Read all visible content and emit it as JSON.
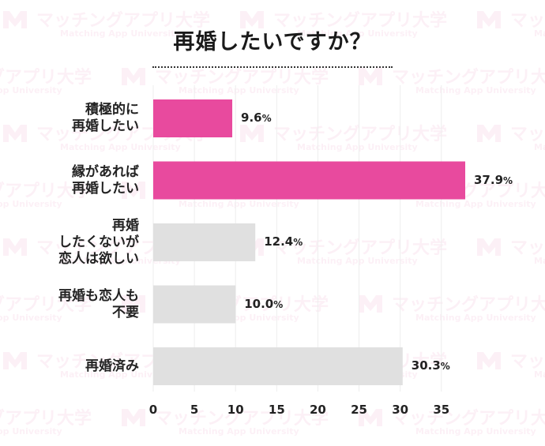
{
  "title": "再婚したいですか？",
  "watermark": {
    "brand": "マッチングアプリ大学",
    "brand_en": "Matching App University",
    "color": "#e15a96"
  },
  "colors": {
    "highlight": "#e84a9e",
    "normal": "#e0e0e0"
  },
  "chart_data": {
    "type": "bar",
    "orientation": "horizontal",
    "title": "再婚したいですか？",
    "categories": [
      "積極的に\n再婚したい",
      "縁があれば\n再婚したい",
      "再婚\nしたくないが\n恋人は欲しい",
      "再婚も恋人も\n不要",
      "再婚済み"
    ],
    "values": [
      9.6,
      37.9,
      12.4,
      10.0,
      30.3
    ],
    "value_labels": [
      "9.6",
      "37.9",
      "12.4",
      "10.0",
      "30.3"
    ],
    "value_unit": "%",
    "highlighted": [
      true,
      true,
      false,
      false,
      false
    ],
    "xlim": [
      0,
      37.9
    ],
    "xticks": [
      0,
      5,
      10,
      15,
      20,
      25,
      30,
      35
    ],
    "xlabel": "",
    "ylabel": "",
    "grid": "vertical"
  }
}
